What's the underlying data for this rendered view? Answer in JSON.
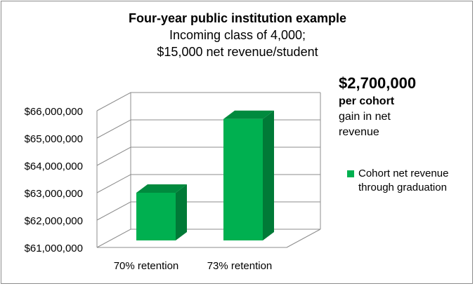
{
  "chart_data": {
    "type": "bar",
    "title": "Four-year public institution example",
    "subtitle_lines": [
      "Incoming class of 4,000;",
      "$15,000  net revenue/student"
    ],
    "categories": [
      "70% retention",
      "73% retention"
    ],
    "series": [
      {
        "name": "Cohort net revenue through graduation",
        "values": [
          63000000,
          65700000
        ],
        "color": "#00b050"
      }
    ],
    "ylim": [
      61000000,
      66000000
    ],
    "yticks": [
      "$61,000,000",
      "$62,000,000",
      "$63,000,000",
      "$64,000,000",
      "$65,000,000",
      "$66,000,000"
    ],
    "ytick_values": [
      61000000,
      62000000,
      63000000,
      64000000,
      65000000,
      66000000
    ],
    "grid": true,
    "legend_position": "right",
    "annotation": {
      "amount": "$2,700,000",
      "per": "per cohort",
      "gain_lines": [
        "gain in net",
        "revenue"
      ]
    },
    "legend_lines": [
      "Cohort net revenue",
      "through graduation"
    ]
  }
}
